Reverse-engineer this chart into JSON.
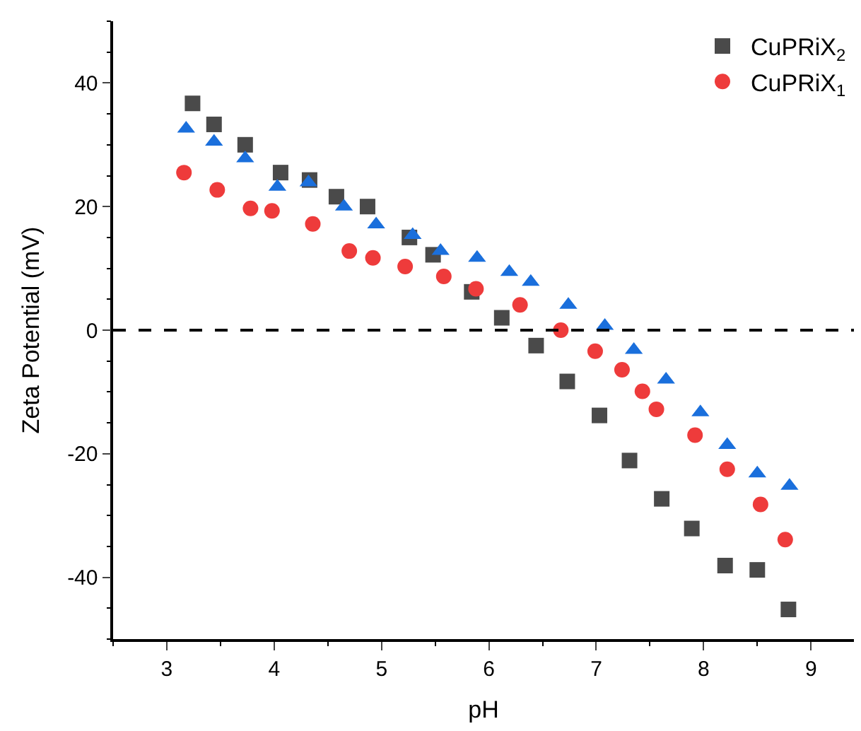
{
  "chart_data": {
    "type": "scatter",
    "xlabel": "pH",
    "ylabel": "Zeta Potential (mV)",
    "xlim": [
      2.5,
      9.4
    ],
    "xticks": [
      3,
      4,
      5,
      6,
      7,
      8,
      9
    ],
    "ylim": [
      -50,
      50
    ],
    "yticks": [
      -40,
      -20,
      0,
      20,
      40
    ],
    "legend": "top right",
    "ref_lines": [
      {
        "axis": "y",
        "value": 0,
        "color": "#000000",
        "line_style": "dashed"
      }
    ],
    "series": [
      {
        "name": "CuPRiX$_{2}$",
        "color": "#4a4a4a",
        "marker": "square",
        "x": [
          3.24,
          3.44,
          3.73,
          4.06,
          4.33,
          4.58,
          4.87,
          5.26,
          5.48,
          5.84,
          6.12,
          6.44,
          6.73,
          7.03,
          7.31,
          7.61,
          7.89,
          8.2,
          8.5,
          8.79
        ],
        "values": [
          36.7,
          33.3,
          30,
          25.5,
          24.3,
          21.6,
          20,
          15,
          12.2,
          6.2,
          2,
          -2.5,
          -8.3,
          -13.8,
          -21.1,
          -27.3,
          -32.1,
          -38.1,
          -38.8,
          -45.2
        ]
      },
      {
        "name": "CuPRiX$_{1}$",
        "color": "#ee3b3b",
        "marker": "circle",
        "x": [
          3.16,
          3.47,
          3.78,
          3.98,
          4.36,
          4.7,
          4.92,
          5.22,
          5.58,
          5.88,
          6.29,
          6.67,
          6.99,
          7.24,
          7.43,
          7.56,
          7.92,
          8.22,
          8.53,
          8.76
        ],
        "values": [
          25.5,
          22.7,
          19.7,
          19.3,
          17.2,
          12.8,
          11.7,
          10.3,
          8.7,
          6.7,
          4.1,
          0,
          -3.4,
          -6.4,
          -9.9,
          -12.8,
          -17,
          -22.5,
          -28.2,
          -33.9
        ]
      },
      {
        "color": "#1a6fdc",
        "marker": "triangle",
        "x": [
          3.18,
          3.44,
          3.73,
          4.03,
          4.32,
          4.65,
          4.95,
          5.29,
          5.55,
          5.89,
          6.19,
          6.39,
          6.74,
          7.08,
          7.35,
          7.65,
          7.97,
          8.22,
          8.5,
          8.8
        ],
        "values": [
          32.6,
          30.5,
          27.8,
          23.2,
          23.9,
          20,
          17.1,
          15.4,
          12.8,
          11.7,
          9.4,
          7.8,
          4.1,
          0.7,
          -3.2,
          -8,
          -13.3,
          -18.6,
          -23.2,
          -25.2
        ]
      }
    ]
  }
}
